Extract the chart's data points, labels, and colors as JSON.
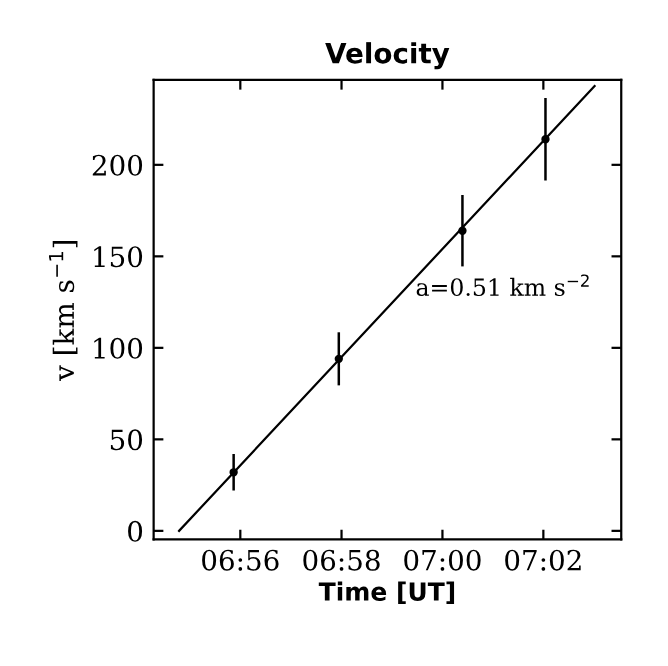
{
  "chart_data": {
    "type": "scatter",
    "title": "Velocity",
    "xlabel": "Time [UT]",
    "ylabel": "v [km s$^{−1}$]",
    "annotations": [
      "a=0.51 km s$^{−2}$"
    ],
    "series": [
      {
        "color": "#000000",
        "x": [
          6.9311,
          6.9658,
          7.0066,
          7.034
        ],
        "values": [
          32,
          94,
          164,
          214
        ],
        "errors": [
          10,
          14.5,
          19.5,
          22.5
        ]
      },
      {
        "type": "line",
        "color": "#000000",
        "x": [
          6.9131,
          7.0502
        ],
        "values": [
          0,
          243
        ]
      }
    ],
    "xlim": [
      6.9047,
      7.059
    ],
    "ylim": [
      -4.7,
      246.4
    ],
    "xticks": [
      {
        "value": 6.9333,
        "label": "06:56"
      },
      {
        "value": 6.9667,
        "label": "06:58"
      },
      {
        "value": 7.0,
        "label": "07:00"
      },
      {
        "value": 7.0333,
        "label": "07:02"
      }
    ],
    "yticks": [
      0,
      50,
      100,
      150,
      200
    ],
    "grid": false,
    "legend": false
  }
}
